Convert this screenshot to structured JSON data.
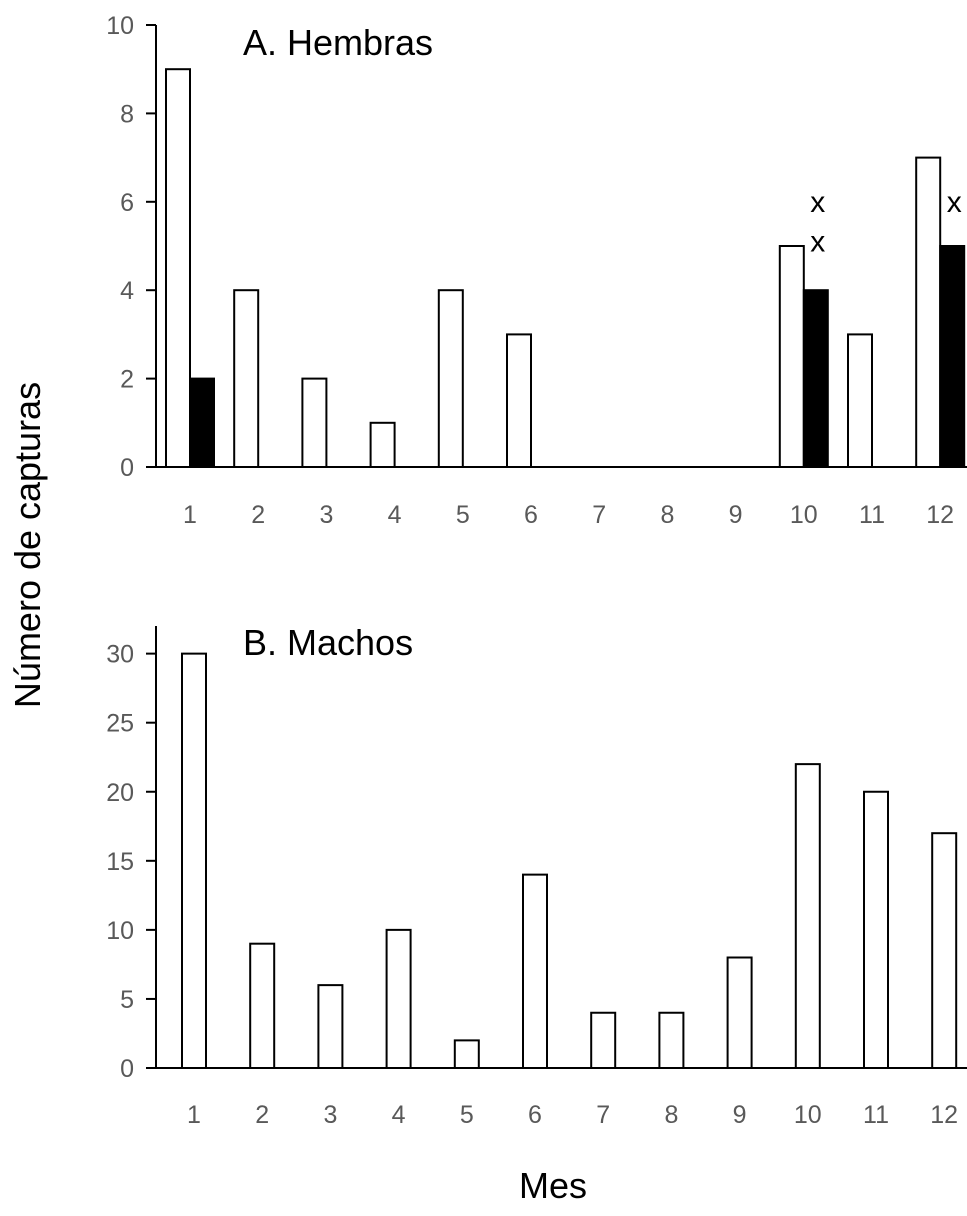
{
  "ylabel": "Número de capturas",
  "xlabel": "Mes",
  "colors": {
    "open_bar": "#ffffff",
    "filled_bar": "#000000",
    "stroke": "#000000",
    "tick_text": "#595959"
  },
  "chart_data": [
    {
      "type": "bar",
      "title": "A. Hembras",
      "categories": [
        "1",
        "2",
        "3",
        "4",
        "5",
        "6",
        "7",
        "8",
        "9",
        "10",
        "11",
        "12"
      ],
      "ylim": [
        0,
        10
      ],
      "yticks": [
        0,
        2,
        4,
        6,
        8,
        10
      ],
      "series": [
        {
          "fill": "#ffffff",
          "values": [
            9,
            4,
            2,
            1,
            4,
            3,
            0,
            0,
            0,
            5,
            3,
            7
          ]
        },
        {
          "fill": "#000000",
          "values": [
            2,
            0,
            0,
            0,
            0,
            0,
            0,
            0,
            0,
            4,
            0,
            5
          ]
        }
      ],
      "annotations": [
        {
          "category": "10",
          "text": "x",
          "y": 6.0
        },
        {
          "category": "10",
          "text": "x",
          "y": 5.1
        },
        {
          "category": "12",
          "text": "x",
          "y": 6.0
        }
      ]
    },
    {
      "type": "bar",
      "title": "B. Machos",
      "categories": [
        "1",
        "2",
        "3",
        "4",
        "5",
        "6",
        "7",
        "8",
        "9",
        "10",
        "11",
        "12"
      ],
      "ylim": [
        0,
        32
      ],
      "yticks": [
        0,
        5,
        10,
        15,
        20,
        25,
        30
      ],
      "series": [
        {
          "fill": "#ffffff",
          "values": [
            30,
            9,
            6,
            10,
            2,
            14,
            4,
            4,
            8,
            22,
            20,
            17
          ]
        }
      ]
    }
  ]
}
